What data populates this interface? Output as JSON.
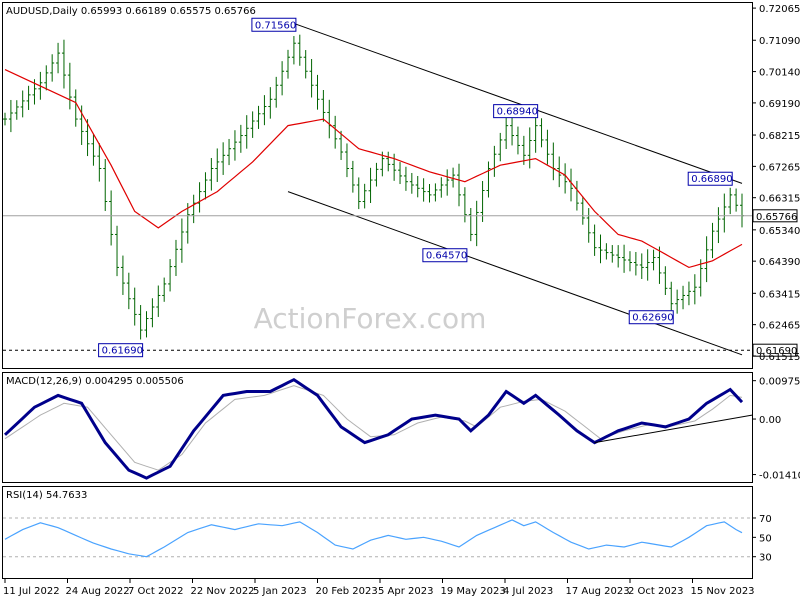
{
  "chart_data": [
    {
      "type": "line",
      "panel": "price",
      "header": "AUDUSD,Daily  0.65993 0.66189 0.65575 0.65766",
      "symbol": "AUDUSD,Daily",
      "ohlc": {
        "open": "0.65993",
        "high": "0.66189",
        "low": "0.65575",
        "close": "0.65766"
      },
      "watermark": "ActionForex.com",
      "ylim": [
        0.6115,
        0.7225
      ],
      "yticks": [
        "0.72065",
        "0.71090",
        "0.70140",
        "0.69190",
        "0.68215",
        "0.67265",
        "0.66315",
        "0.65340",
        "0.64390",
        "0.63415",
        "0.62465",
        "0.61515"
      ],
      "xticks": [
        "11 Jul 2022",
        "24 Aug 2022",
        "7 Oct 2022",
        "22 Nov 2022",
        "5 Jan 2023",
        "20 Feb 2023",
        "5 Apr 2023",
        "19 May 2023",
        "4 Jul 2023",
        "17 Aug 2023",
        "2 Oct 2023",
        "15 Nov 2023"
      ],
      "current_price": {
        "value": 0.65766,
        "label": "0.65766"
      },
      "level_line": {
        "value": 0.6169,
        "label": "0.61690"
      },
      "annotations": [
        {
          "label": "0.71560",
          "date_index": 49,
          "value": 0.7156
        },
        {
          "label": "0.68940",
          "date_index": 90,
          "value": 0.6894
        },
        {
          "label": "0.66890",
          "date_index": 123,
          "value": 0.6689
        },
        {
          "label": "0.64570",
          "date_index": 78,
          "value": 0.6457
        },
        {
          "label": "0.62690",
          "date_index": 113,
          "value": 0.6269
        },
        {
          "label": "0.61690",
          "date_index": 23,
          "value": 0.6169
        }
      ],
      "close_anchors": [
        [
          0,
          0.687
        ],
        [
          6,
          0.698
        ],
        [
          9,
          0.707
        ],
        [
          12,
          0.687
        ],
        [
          16,
          0.672
        ],
        [
          19,
          0.642
        ],
        [
          23,
          0.623
        ],
        [
          27,
          0.637
        ],
        [
          31,
          0.658
        ],
        [
          35,
          0.672
        ],
        [
          40,
          0.682
        ],
        [
          45,
          0.693
        ],
        [
          49,
          0.71
        ],
        [
          53,
          0.693
        ],
        [
          57,
          0.677
        ],
        [
          60,
          0.662
        ],
        [
          64,
          0.675
        ],
        [
          68,
          0.668
        ],
        [
          72,
          0.664
        ],
        [
          76,
          0.67
        ],
        [
          79,
          0.652
        ],
        [
          82,
          0.672
        ],
        [
          85,
          0.685
        ],
        [
          88,
          0.676
        ],
        [
          90,
          0.685
        ],
        [
          93,
          0.672
        ],
        [
          96,
          0.666
        ],
        [
          100,
          0.648
        ],
        [
          104,
          0.645
        ],
        [
          108,
          0.642
        ],
        [
          110,
          0.645
        ],
        [
          113,
          0.631
        ],
        [
          117,
          0.636
        ],
        [
          120,
          0.653
        ],
        [
          123,
          0.664
        ],
        [
          125,
          0.6577
        ]
      ],
      "ma_anchors": [
        [
          0,
          0.702
        ],
        [
          6,
          0.697
        ],
        [
          12,
          0.692
        ],
        [
          18,
          0.673
        ],
        [
          22,
          0.659
        ],
        [
          26,
          0.654
        ],
        [
          30,
          0.659
        ],
        [
          36,
          0.665
        ],
        [
          42,
          0.674
        ],
        [
          48,
          0.685
        ],
        [
          54,
          0.687
        ],
        [
          60,
          0.678
        ],
        [
          66,
          0.675
        ],
        [
          72,
          0.671
        ],
        [
          78,
          0.668
        ],
        [
          84,
          0.673
        ],
        [
          90,
          0.675
        ],
        [
          95,
          0.67
        ],
        [
          100,
          0.659
        ],
        [
          104,
          0.652
        ],
        [
          108,
          0.65
        ],
        [
          112,
          0.646
        ],
        [
          116,
          0.642
        ],
        [
          120,
          0.644
        ],
        [
          125,
          0.649
        ]
      ],
      "channel": [
        {
          "from": [
            49,
            0.716
          ],
          "to": [
            125,
            0.6675
          ]
        },
        {
          "from": [
            48,
            0.665
          ],
          "to": [
            125,
            0.6155
          ]
        }
      ]
    },
    {
      "type": "line",
      "panel": "macd",
      "header": "MACD(12,26,9) 0.004295 0.005506",
      "label": "MACD(12,26,9)",
      "values_text": [
        "0.004295",
        "0.005506"
      ],
      "yticks": [
        "0.009751",
        "0.00",
        "-0.014107"
      ],
      "ylim": [
        -0.016,
        0.0117
      ],
      "macd_anchors": [
        [
          0,
          -0.004
        ],
        [
          5,
          0.003
        ],
        [
          9,
          0.006
        ],
        [
          13,
          0.004
        ],
        [
          17,
          -0.006
        ],
        [
          21,
          -0.013
        ],
        [
          24,
          -0.015
        ],
        [
          28,
          -0.012
        ],
        [
          32,
          -0.003
        ],
        [
          37,
          0.006
        ],
        [
          41,
          0.007
        ],
        [
          45,
          0.007
        ],
        [
          49,
          0.01
        ],
        [
          53,
          0.006
        ],
        [
          57,
          -0.002
        ],
        [
          61,
          -0.006
        ],
        [
          65,
          -0.004
        ],
        [
          69,
          0.0
        ],
        [
          73,
          0.001
        ],
        [
          77,
          0.0
        ],
        [
          79,
          -0.003
        ],
        [
          82,
          0.001
        ],
        [
          85,
          0.007
        ],
        [
          88,
          0.004
        ],
        [
          90,
          0.006
        ],
        [
          94,
          0.001
        ],
        [
          97,
          -0.003
        ],
        [
          100,
          -0.006
        ],
        [
          104,
          -0.003
        ],
        [
          108,
          -0.001
        ],
        [
          112,
          -0.002
        ],
        [
          116,
          0.0
        ],
        [
          119,
          0.004
        ],
        [
          123,
          0.0075
        ],
        [
          125,
          0.0043
        ]
      ],
      "signal_anchors": [
        [
          0,
          -0.005
        ],
        [
          6,
          0.001
        ],
        [
          10,
          0.004
        ],
        [
          14,
          0.003
        ],
        [
          18,
          -0.004
        ],
        [
          22,
          -0.011
        ],
        [
          26,
          -0.013
        ],
        [
          30,
          -0.009
        ],
        [
          34,
          -0.001
        ],
        [
          39,
          0.005
        ],
        [
          44,
          0.006
        ],
        [
          49,
          0.0085
        ],
        [
          54,
          0.006
        ],
        [
          58,
          0.0
        ],
        [
          62,
          -0.0045
        ],
        [
          66,
          -0.004
        ],
        [
          70,
          -0.001
        ],
        [
          74,
          0.0005
        ],
        [
          78,
          -0.0005
        ],
        [
          80,
          -0.002
        ],
        [
          84,
          0.003
        ],
        [
          88,
          0.0045
        ],
        [
          91,
          0.005
        ],
        [
          95,
          0.002
        ],
        [
          98,
          -0.0015
        ],
        [
          101,
          -0.005
        ],
        [
          105,
          -0.003
        ],
        [
          109,
          -0.0015
        ],
        [
          113,
          -0.0018
        ],
        [
          117,
          -0.0005
        ],
        [
          120,
          0.0025
        ],
        [
          123,
          0.006
        ],
        [
          125,
          0.0055
        ]
      ],
      "trendline": {
        "from": [
          100,
          -0.006
        ],
        "to": [
          125,
          0.0005
        ]
      }
    },
    {
      "type": "line",
      "panel": "rsi",
      "header": "RSI(14) 54.7633",
      "label": "RSI(14)",
      "value_text": "54.7633",
      "yticks": [
        "70",
        "50",
        "30"
      ],
      "ylim": [
        8,
        102
      ],
      "levels": [
        70,
        30
      ],
      "rsi_anchors": [
        [
          0,
          48
        ],
        [
          3,
          58
        ],
        [
          6,
          65
        ],
        [
          9,
          60
        ],
        [
          12,
          52
        ],
        [
          15,
          44
        ],
        [
          18,
          38
        ],
        [
          21,
          33
        ],
        [
          24,
          30
        ],
        [
          27,
          40
        ],
        [
          31,
          55
        ],
        [
          35,
          63
        ],
        [
          39,
          58
        ],
        [
          43,
          64
        ],
        [
          47,
          62
        ],
        [
          50,
          66
        ],
        [
          53,
          55
        ],
        [
          56,
          42
        ],
        [
          59,
          38
        ],
        [
          62,
          47
        ],
        [
          65,
          52
        ],
        [
          68,
          48
        ],
        [
          71,
          50
        ],
        [
          74,
          46
        ],
        [
          77,
          40
        ],
        [
          80,
          52
        ],
        [
          83,
          60
        ],
        [
          86,
          68
        ],
        [
          88,
          62
        ],
        [
          90,
          66
        ],
        [
          93,
          55
        ],
        [
          96,
          45
        ],
        [
          99,
          38
        ],
        [
          102,
          42
        ],
        [
          105,
          40
        ],
        [
          108,
          45
        ],
        [
          111,
          42
        ],
        [
          113,
          40
        ],
        [
          116,
          50
        ],
        [
          119,
          62
        ],
        [
          122,
          66
        ],
        [
          124,
          58
        ],
        [
          125,
          54.8
        ]
      ]
    }
  ]
}
